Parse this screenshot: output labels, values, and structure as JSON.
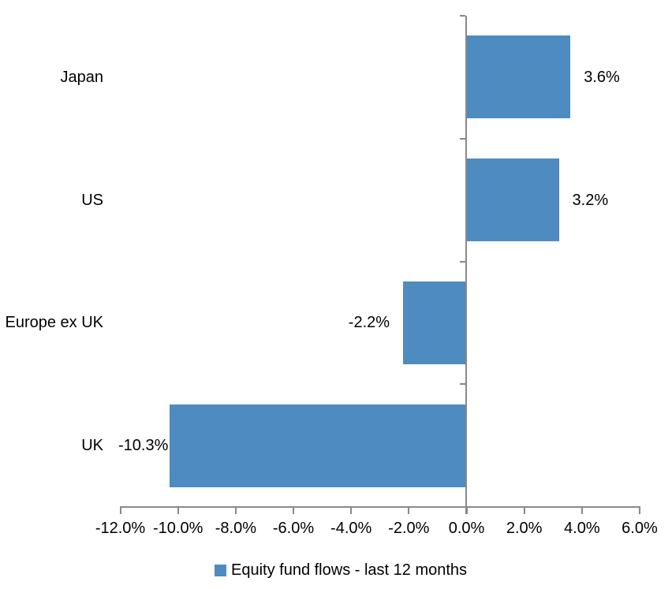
{
  "chart_data": {
    "type": "bar",
    "orientation": "horizontal",
    "title": "",
    "categories": [
      "Japan",
      "US",
      "Europe ex UK",
      "UK"
    ],
    "values": [
      3.6,
      3.2,
      -2.2,
      -10.3
    ],
    "data_labels": [
      "3.6%",
      "3.2%",
      "-2.2%",
      "-10.3%"
    ],
    "series_name": "Equity fund flows - last 12 months",
    "x_ticks": [
      -12,
      -10,
      -8,
      -6,
      -4,
      -2,
      0,
      2,
      4,
      6
    ],
    "x_tick_labels": [
      "-12.0%",
      "-10.0%",
      "-8.0%",
      "-6.0%",
      "-4.0%",
      "-2.0%",
      "0.0%",
      "2.0%",
      "4.0%",
      "6.0%"
    ],
    "xlim": [
      -12,
      6
    ],
    "grid": "off",
    "legend_position": "bottom",
    "bar_color": "#4d8bc0",
    "axis_color": "#898989",
    "text_color": "#000000"
  },
  "legend": {
    "label": "Equity fund flows - last 12 months"
  }
}
